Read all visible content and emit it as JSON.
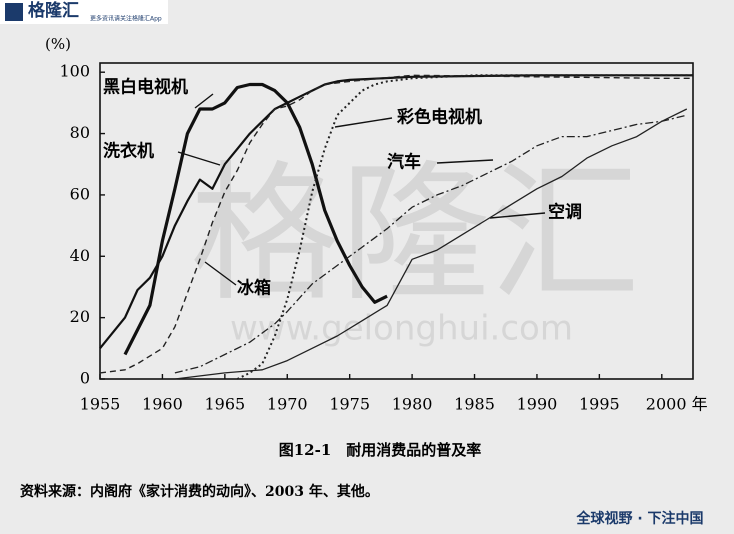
{
  "logo_text": "格隆汇",
  "logo_subtext": "更多资讯请关注格隆汇App",
  "watermark": "格隆汇",
  "watermark_url": "www.gelonghui.com",
  "footer_slogan": "全球视野 · 下注中国",
  "chart_data": {
    "type": "line",
    "ylabel": "(%)",
    "caption": "图12-1　耐用消费品的普及率",
    "source": "资料来源：内阁府《家计消费的动向》、2003 年、其他。",
    "xlim": [
      1955,
      2002.5
    ],
    "ylim": [
      0,
      103
    ],
    "xticks": [
      1955,
      1960,
      1965,
      1970,
      1975,
      1980,
      1985,
      1990,
      1995,
      {
        "value": 2000,
        "label": "2000 年"
      }
    ],
    "yticks": [
      0,
      20,
      40,
      60,
      80,
      100
    ],
    "series": [
      {
        "name": "黑白电视机",
        "color": "#111111",
        "style": "solid",
        "linewidth": 3.2,
        "x": [
          1957,
          1958,
          1959,
          1960,
          1961,
          1962,
          1963,
          1964,
          1965,
          1966,
          1967,
          1968,
          1969,
          1970,
          1971,
          1972,
          1973,
          1974,
          1975,
          1976,
          1977,
          1978
        ],
        "values": [
          8,
          16,
          24,
          45,
          62,
          80,
          88,
          88,
          90,
          95,
          96,
          96,
          94,
          90,
          82,
          70,
          55,
          45,
          37,
          30,
          25,
          27
        ]
      },
      {
        "name": "洗衣机",
        "color": "#111111",
        "style": "solid",
        "linewidth": 2.2,
        "x": [
          1955,
          1957,
          1958,
          1959,
          1960,
          1961,
          1962,
          1963,
          1964,
          1965,
          1966,
          1967,
          1968,
          1969,
          1970,
          1971,
          1972,
          1973,
          1974,
          1975,
          1980,
          1990,
          2000,
          2002.5
        ],
        "values": [
          10,
          20,
          29,
          33,
          40,
          50,
          58,
          65,
          62,
          70,
          75,
          80,
          84,
          88,
          90,
          92,
          94,
          96,
          97,
          97.5,
          98.5,
          99,
          99,
          99
        ]
      },
      {
        "name": "冰箱",
        "color": "#222222",
        "style": "dashed",
        "linewidth": 1.4,
        "x": [
          1955,
          1957,
          1958,
          1960,
          1961,
          1962,
          1963,
          1964,
          1965,
          1966,
          1967,
          1968,
          1969,
          1970,
          1971,
          1972,
          1973,
          1975,
          1980,
          2000,
          2002.5
        ],
        "values": [
          2,
          3,
          5,
          10,
          17,
          28,
          39,
          51,
          61,
          68,
          77,
          83,
          88,
          89,
          91,
          94,
          96,
          97,
          99,
          98,
          98
        ]
      },
      {
        "name": "彩色电视机",
        "color": "#222222",
        "style": "dotted",
        "linewidth": 2,
        "x": [
          1966,
          1967,
          1968,
          1969,
          1970,
          1971,
          1972,
          1973,
          1974,
          1975,
          1976,
          1977,
          1978,
          1980,
          1985,
          2000,
          2002.5
        ],
        "values": [
          0,
          2,
          5,
          14,
          26,
          42,
          61,
          75,
          86,
          90,
          94,
          96,
          97,
          98,
          99,
          99,
          99
        ]
      },
      {
        "name": "汽车",
        "color": "#222222",
        "style": "dashdot",
        "linewidth": 1.3,
        "x": [
          1961,
          1963,
          1965,
          1967,
          1969,
          1970,
          1972,
          1974,
          1976,
          1978,
          1980,
          1982,
          1984,
          1986,
          1988,
          1990,
          1992,
          1994,
          1996,
          1998,
          2000,
          2002
        ],
        "values": [
          2,
          4,
          8,
          12,
          18,
          22,
          31,
          37,
          43,
          49,
          56,
          60,
          63,
          67,
          71,
          76,
          79,
          79,
          81,
          83,
          84,
          86
        ]
      },
      {
        "name": "空调",
        "color": "#222222",
        "style": "solid",
        "linewidth": 1.3,
        "x": [
          1961,
          1965,
          1968,
          1970,
          1972,
          1974,
          1976,
          1978,
          1980,
          1982,
          1984,
          1986,
          1988,
          1990,
          1992,
          1994,
          1996,
          1998,
          2000,
          2002
        ],
        "values": [
          0,
          2,
          3,
          6,
          10,
          14,
          19,
          24,
          39,
          42,
          47,
          52,
          57,
          62,
          66,
          72,
          76,
          79,
          84,
          88
        ]
      }
    ]
  }
}
